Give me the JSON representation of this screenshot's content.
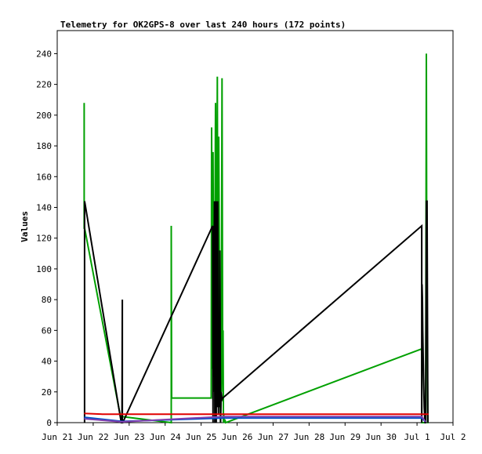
{
  "chart_data": {
    "type": "line",
    "title": "Telemetry for OK2GPS-8 over last 240 hours (172 points)",
    "xlabel": "",
    "ylabel": "Values",
    "ylim": [
      0,
      255
    ],
    "xlim": [
      0,
      11
    ],
    "x_ticks": [
      {
        "pos": 0,
        "label": "Jun 21"
      },
      {
        "pos": 1,
        "label": "Jun 22"
      },
      {
        "pos": 2,
        "label": "Jun 23"
      },
      {
        "pos": 3,
        "label": "Jun 24"
      },
      {
        "pos": 4,
        "label": "Jun 25"
      },
      {
        "pos": 5,
        "label": "Jun 26"
      },
      {
        "pos": 6,
        "label": "Jun 27"
      },
      {
        "pos": 7,
        "label": "Jun 28"
      },
      {
        "pos": 8,
        "label": "Jun 29"
      },
      {
        "pos": 9,
        "label": "Jun 30"
      },
      {
        "pos": 10,
        "label": "Jul 1"
      },
      {
        "pos": 11,
        "label": "Jul 2"
      }
    ],
    "y_ticks": [
      0,
      20,
      40,
      60,
      80,
      100,
      120,
      140,
      160,
      180,
      200,
      220,
      240
    ],
    "grid": false,
    "series": [
      {
        "color": "#00a000",
        "x": [
          0.75,
          0.75,
          0.75,
          1.79,
          1.79,
          1.79,
          3.17,
          3.17,
          3.18,
          4.28,
          4.29,
          4.31,
          4.33,
          4.36,
          4.38,
          4.4,
          4.42,
          4.45,
          4.47,
          4.49,
          4.52,
          4.54,
          4.56,
          4.58,
          4.6,
          4.61,
          4.62,
          4.63,
          4.64,
          4.66,
          4.68,
          10.13,
          10.13,
          10.24,
          10.26,
          10.27,
          10.3,
          10.32
        ],
        "y": [
          126,
          208,
          128,
          0,
          0,
          4,
          0,
          128,
          16,
          16,
          192,
          35,
          176,
          20,
          100,
          208,
          30,
          225,
          12,
          186,
          40,
          0,
          30,
          224,
          20,
          60,
          0,
          5,
          0,
          2,
          0,
          48,
          0,
          0,
          240,
          100,
          0,
          0
        ]
      },
      {
        "color": "#000000",
        "x": [
          0.76,
          0.76,
          0.77,
          1.78,
          1.8,
          1.81,
          1.81,
          1.82,
          4.32,
          4.33,
          4.34,
          4.35,
          4.37,
          4.38,
          4.4,
          4.42,
          4.43,
          4.45,
          4.46,
          4.48,
          4.49,
          4.51,
          4.52,
          4.54,
          4.56,
          4.58,
          4.6,
          10.13,
          10.13,
          10.14,
          10.15,
          10.16,
          10.18,
          10.2,
          10.22,
          10.24,
          10.26,
          10.28,
          10.3
        ],
        "y": [
          0,
          144,
          143,
          0,
          0,
          80,
          0,
          0,
          128,
          0,
          128,
          30,
          144,
          0,
          144,
          0,
          144,
          10,
          144,
          5,
          26,
          10,
          112,
          0,
          20,
          15,
          16,
          128,
          0,
          90,
          80,
          60,
          30,
          10,
          0,
          0,
          144,
          144,
          0
        ]
      },
      {
        "color": "#e00000",
        "x": [
          0.75,
          1.25,
          1.8,
          4.62,
          10.13,
          10.2,
          10.32
        ],
        "y": [
          6,
          5.5,
          5.5,
          5.5,
          5.5,
          5.5,
          5.5
        ]
      },
      {
        "color": "#0050c8",
        "x": [
          0.75,
          1.8,
          4.62,
          10.13,
          10.24
        ],
        "y": [
          3.5,
          0.8,
          3,
          3,
          0.5
        ]
      },
      {
        "color": "#8040b0",
        "x": [
          0.75,
          1.8,
          4.62,
          10.13,
          10.24
        ],
        "y": [
          2.5,
          0.5,
          4,
          4,
          0.5
        ]
      }
    ]
  }
}
